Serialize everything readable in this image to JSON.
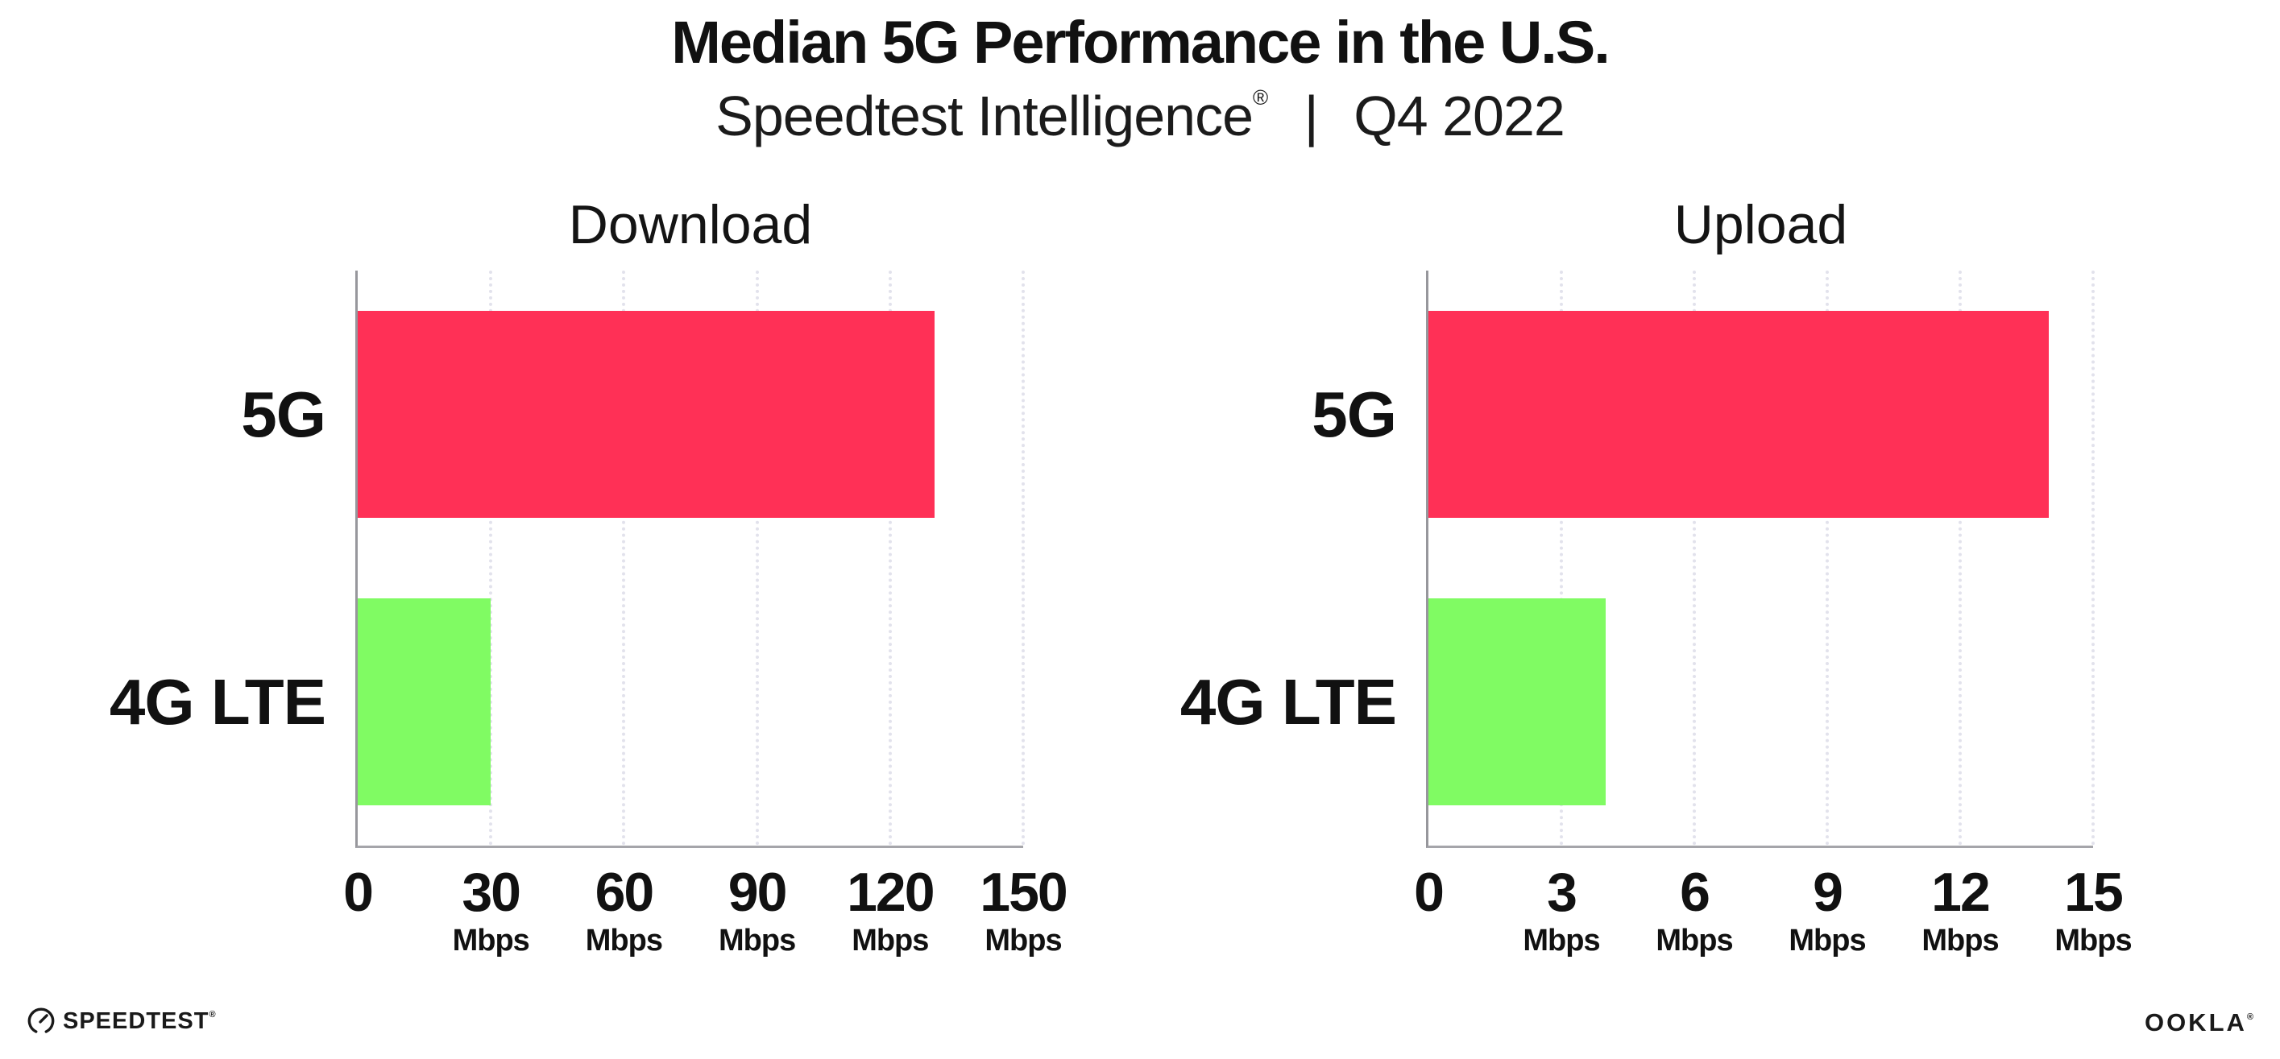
{
  "header": {
    "title": "Median 5G Performance in the U.S.",
    "subtitle": {
      "product": "Speedtest Intelligence",
      "registered": "®",
      "separator": "|",
      "period": "Q4 2022"
    }
  },
  "chart_data": [
    {
      "type": "bar",
      "orientation": "horizontal",
      "title": "Download",
      "categories": [
        "5G",
        "4G LTE"
      ],
      "values": [
        130,
        30
      ],
      "unit": "Mbps",
      "xlabel": "",
      "ylabel": "",
      "xlim": [
        0,
        150
      ],
      "xticks": [
        0,
        30,
        60,
        90,
        120,
        150
      ],
      "bar_colors": [
        "#ff3056",
        "#80fb63"
      ],
      "grid": {
        "vertical": true,
        "style": "dotted",
        "color": "#e2e2ec"
      },
      "legend": "none"
    },
    {
      "type": "bar",
      "orientation": "horizontal",
      "title": "Upload",
      "categories": [
        "5G",
        "4G LTE"
      ],
      "values": [
        14,
        4
      ],
      "unit": "Mbps",
      "xlabel": "",
      "ylabel": "",
      "xlim": [
        0,
        15
      ],
      "xticks": [
        0,
        3,
        6,
        9,
        12,
        15
      ],
      "bar_colors": [
        "#ff3056",
        "#80fb63"
      ],
      "grid": {
        "vertical": true,
        "style": "dotted",
        "color": "#e2e2ec"
      },
      "legend": "none"
    }
  ],
  "footer": {
    "speedtest": {
      "label": "SPEEDTEST",
      "mark": "®"
    },
    "ookla": {
      "label": "OOKLA",
      "mark": "®"
    }
  },
  "colors": {
    "bar_5g": "#ff3056",
    "bar_4g_lte": "#80fb63",
    "axis": "#97979c",
    "gridline": "#e2e2ec",
    "text": "#111111",
    "background": "#ffffff"
  }
}
